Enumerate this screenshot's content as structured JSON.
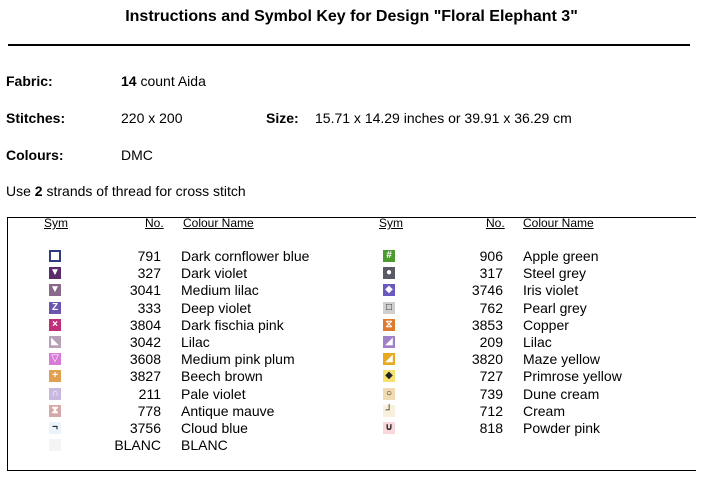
{
  "title": "Instructions and Symbol Key for Design \"Floral Elephant 3\"",
  "fabric": {
    "label": "Fabric:",
    "count": "14",
    "rest": " count Aida"
  },
  "stitches": {
    "label": "Stitches:",
    "value": "220 x 200"
  },
  "size": {
    "label": "Size:",
    "value": "15.71 x 14.29 inches or 39.91 x 36.29 cm"
  },
  "colours": {
    "label": "Colours:",
    "value": "DMC"
  },
  "strands": {
    "pre": "Use ",
    "count": "2",
    "post": " strands of thread for cross stitch"
  },
  "headers": {
    "sym": "Sym",
    "no": "No.",
    "name": "Colour Name"
  },
  "left": [
    {
      "no": "791",
      "name": "Dark cornflower blue",
      "color": "#2f3d7a",
      "style": "outline",
      "glyph": ""
    },
    {
      "no": "327",
      "name": "Dark violet",
      "color": "#5a2a6a",
      "style": "fill",
      "glyph": "▼"
    },
    {
      "no": "3041",
      "name": "Medium lilac",
      "color": "#8a6a8a",
      "style": "fill",
      "glyph": "▼"
    },
    {
      "no": "333",
      "name": "Deep violet",
      "color": "#6a55b0",
      "style": "fill",
      "glyph": "Z"
    },
    {
      "no": "3804",
      "name": "Dark fischia pink",
      "color": "#c0307a",
      "style": "fill",
      "glyph": "×"
    },
    {
      "no": "3042",
      "name": "Lilac",
      "color": "#b8a0b8",
      "style": "fill",
      "glyph": "◣"
    },
    {
      "no": "3608",
      "name": "Medium pink plum",
      "color": "#d87ad8",
      "style": "fill",
      "glyph": "▽"
    },
    {
      "no": "3827",
      "name": "Beech brown",
      "color": "#e0a050",
      "style": "fill",
      "glyph": "+"
    },
    {
      "no": "211",
      "name": "Pale violet",
      "color": "#c8b8e0",
      "style": "fill",
      "glyph": "∩"
    },
    {
      "no": "778",
      "name": "Antique mauve",
      "color": "#d8a8a8",
      "style": "fill",
      "glyph": "⧗"
    },
    {
      "no": "3756",
      "name": "Cloud blue",
      "color": "#eaf2fa",
      "style": "fill",
      "glyph": "¬"
    },
    {
      "no": "BLANC",
      "name": "BLANC",
      "color": "#f4f4f4",
      "style": "fill",
      "glyph": ""
    }
  ],
  "right": [
    {
      "no": "906",
      "name": "Apple green",
      "color": "#4a9a30",
      "style": "fill",
      "glyph": "#"
    },
    {
      "no": "317",
      "name": "Steel grey",
      "color": "#5a5a66",
      "style": "fill",
      "glyph": "●"
    },
    {
      "no": "3746",
      "name": "Iris violet",
      "color": "#6a5ac0",
      "style": "fill",
      "glyph": "◆"
    },
    {
      "no": "762",
      "name": "Pearl grey",
      "color": "#cfcfcf",
      "style": "fill",
      "glyph": "□"
    },
    {
      "no": "3853",
      "name": "Copper",
      "color": "#e07a30",
      "style": "fill",
      "glyph": "⧖"
    },
    {
      "no": "209",
      "name": "Lilac",
      "color": "#a080c8",
      "style": "fill",
      "glyph": "◢"
    },
    {
      "no": "3820",
      "name": "Maze yellow",
      "color": "#e8a820",
      "style": "fill",
      "glyph": "◢"
    },
    {
      "no": "727",
      "name": "Primrose yellow",
      "color": "#f6e070",
      "style": "fill",
      "glyph": "◆"
    },
    {
      "no": "739",
      "name": "Dune cream",
      "color": "#f0dcb0",
      "style": "fill",
      "glyph": "○"
    },
    {
      "no": "712",
      "name": "Cream",
      "color": "#f8f0dc",
      "style": "fill",
      "glyph": "┘"
    },
    {
      "no": "818",
      "name": "Powder pink",
      "color": "#f8d8dc",
      "style": "fill",
      "glyph": "∪"
    }
  ]
}
